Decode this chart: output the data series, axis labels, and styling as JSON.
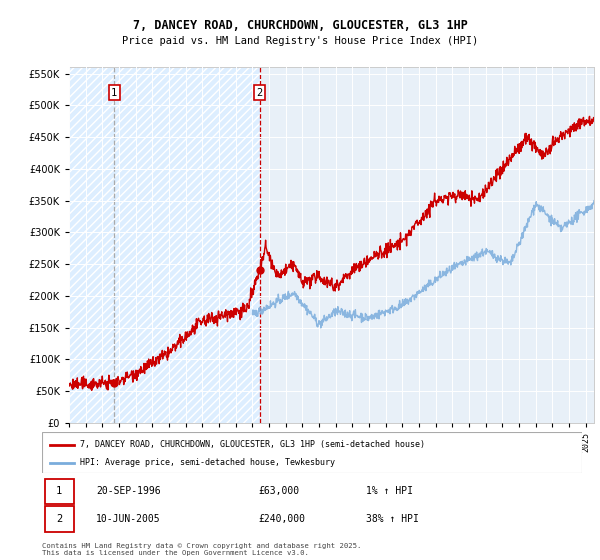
{
  "title": "7, DANCEY ROAD, CHURCHDOWN, GLOUCESTER, GL3 1HP",
  "subtitle": "Price paid vs. HM Land Registry's House Price Index (HPI)",
  "red_label": "7, DANCEY ROAD, CHURCHDOWN, GLOUCESTER, GL3 1HP (semi-detached house)",
  "blue_label": "HPI: Average price, semi-detached house, Tewkesbury",
  "annotation1_date": "20-SEP-1996",
  "annotation1_price": "£63,000",
  "annotation1_hpi": "1% ↑ HPI",
  "annotation2_date": "10-JUN-2005",
  "annotation2_price": "£240,000",
  "annotation2_hpi": "38% ↑ HPI",
  "footer": "Contains HM Land Registry data © Crown copyright and database right 2025.\nThis data is licensed under the Open Government Licence v3.0.",
  "purchase1_year": 1996.72,
  "purchase1_price": 63000,
  "purchase2_year": 2005.44,
  "purchase2_price": 240000,
  "ylim": [
    0,
    560000
  ],
  "yticks": [
    0,
    50000,
    100000,
    150000,
    200000,
    250000,
    300000,
    350000,
    400000,
    450000,
    500000,
    550000
  ],
  "xlim_start": 1994.0,
  "xlim_end": 2025.5,
  "red_color": "#cc0000",
  "blue_color": "#7aacdc",
  "vline1_color": "#888888",
  "vline2_color": "#cc0000",
  "plot_bg_light": "#ddeeff",
  "hatch_region_end": 2005.44
}
